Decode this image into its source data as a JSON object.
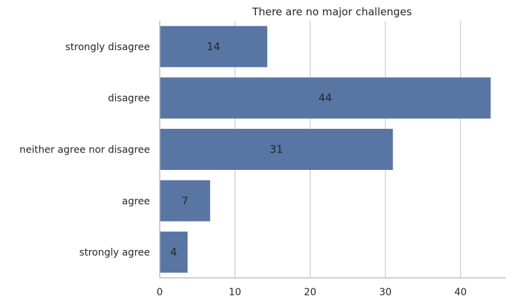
{
  "chart_data": {
    "type": "bar",
    "orientation": "horizontal",
    "title": "There are no major challenges",
    "xlabel": "",
    "ylabel": "",
    "categories": [
      "strongly disagree",
      "disagree",
      "neither agree nor disagree",
      "agree",
      "strongly agree"
    ],
    "values": [
      14.3,
      44,
      31,
      6.7,
      3.7
    ],
    "data_labels": [
      "14",
      "44",
      "31",
      "7",
      "4"
    ],
    "xticks": [
      0,
      10,
      20,
      30,
      40
    ],
    "xtick_labels": [
      "0",
      "10",
      "20",
      "30",
      "40"
    ],
    "xlim": [
      0,
      46
    ],
    "grid": true,
    "bar_color": "#5875a4",
    "grid_color": "#d3d3d3",
    "spine_color": "#bdbdbd",
    "text_color": "#262626"
  }
}
